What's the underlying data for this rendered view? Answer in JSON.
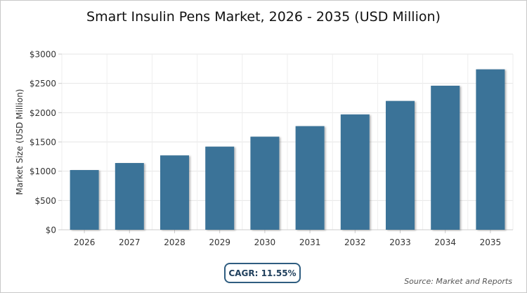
{
  "chart_data": {
    "type": "bar",
    "title": "Smart Insulin Pens Market, 2026 - 2035 (USD Million)",
    "ylabel": "Market Size (USD Million)",
    "xlabel": "",
    "categories": [
      "2026",
      "2027",
      "2028",
      "2029",
      "2030",
      "2031",
      "2032",
      "2033",
      "2034",
      "2035"
    ],
    "values": [
      1020,
      1140,
      1270,
      1420,
      1590,
      1770,
      1970,
      2200,
      2460,
      2740
    ],
    "ylim": [
      0,
      3000
    ],
    "yticks": [
      0,
      500,
      1000,
      1500,
      2000,
      2500,
      3000
    ],
    "ytick_labels": [
      "$0",
      "$500",
      "$1000",
      "$1500",
      "$2000",
      "$2500",
      "$3000"
    ],
    "grid": true,
    "bar_color": "#3b7398"
  },
  "footer": {
    "cagr": "CAGR: 11.55%",
    "source": "Source: Market and Reports"
  }
}
